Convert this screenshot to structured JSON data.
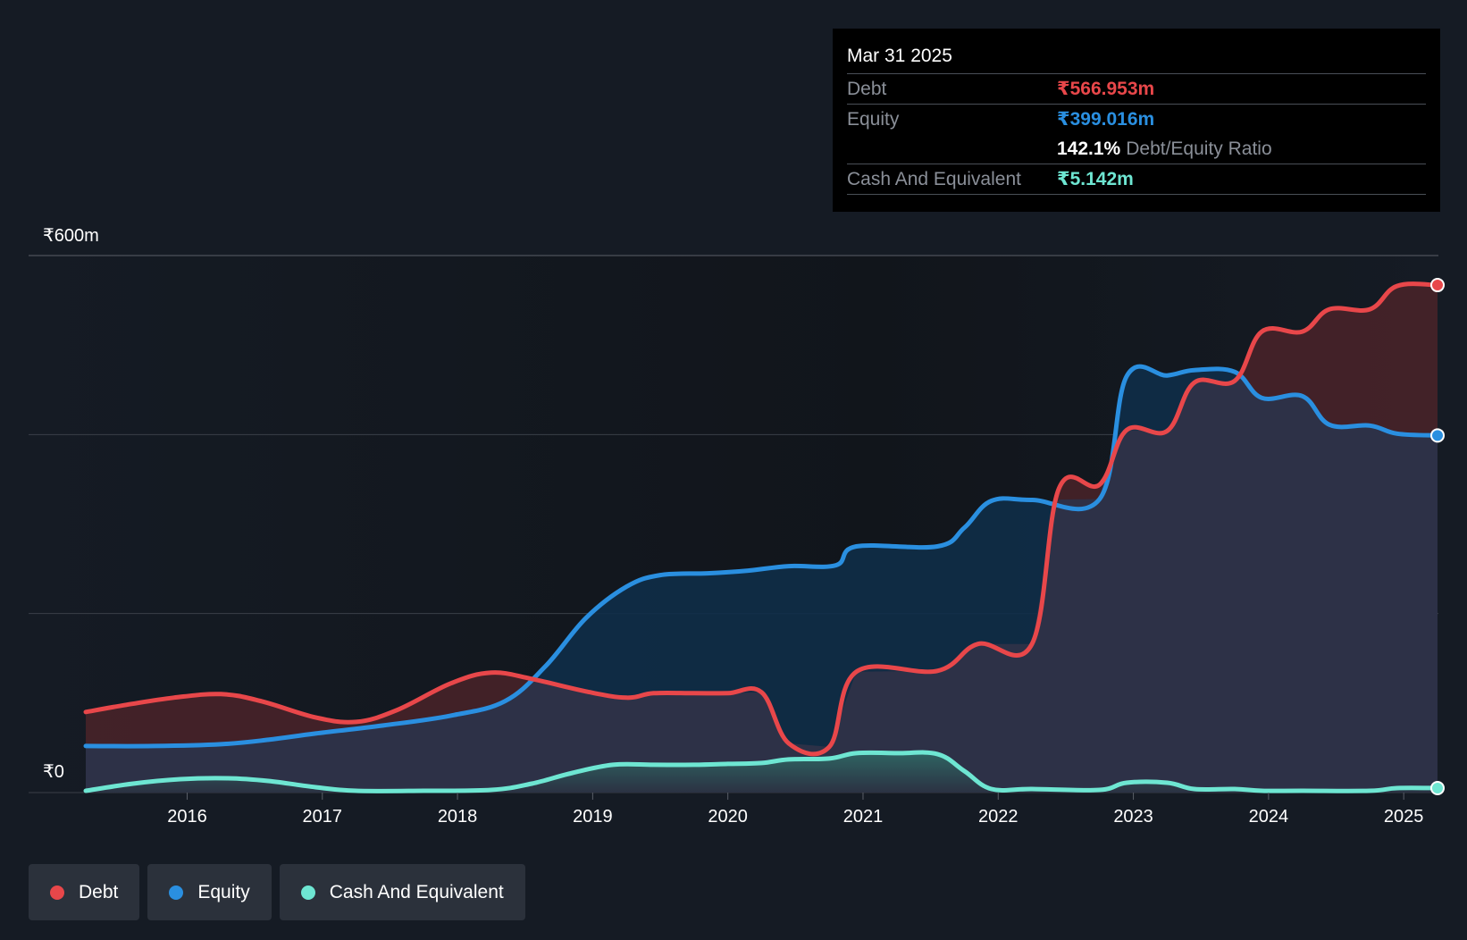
{
  "colors": {
    "debt": "#e8474a",
    "equity": "#2a8fe0",
    "cash": "#6ee6d2",
    "grid": "#3a3f48",
    "background": "#151b24"
  },
  "tooltip": {
    "date": "Mar 31 2025",
    "debt_label": "Debt",
    "debt_value": "₹566.953m",
    "equity_label": "Equity",
    "equity_value": "₹399.016m",
    "ratio_value": "142.1%",
    "ratio_label": "Debt/Equity Ratio",
    "cash_label": "Cash And Equivalent",
    "cash_value": "₹5.142m"
  },
  "legend": [
    {
      "key": "debt",
      "label": "Debt"
    },
    {
      "key": "equity",
      "label": "Equity"
    },
    {
      "key": "cash",
      "label": "Cash And Equivalent"
    }
  ],
  "chart_data": {
    "type": "area",
    "title": "",
    "xlabel": "",
    "ylabel": "",
    "y_axis_labels": [
      "₹600m",
      "₹0"
    ],
    "ylim": [
      0,
      600
    ],
    "xlim": [
      2015.25,
      2025.25
    ],
    "x_ticks": [
      "2016",
      "2017",
      "2018",
      "2019",
      "2020",
      "2021",
      "2022",
      "2023",
      "2024",
      "2025"
    ],
    "series": [
      {
        "name": "Debt",
        "key": "debt",
        "points": [
          [
            2015.25,
            90
          ],
          [
            2015.55,
            98
          ],
          [
            2015.9,
            106
          ],
          [
            2016.25,
            110
          ],
          [
            2016.55,
            102
          ],
          [
            2016.95,
            84
          ],
          [
            2017.25,
            79
          ],
          [
            2017.55,
            92
          ],
          [
            2017.95,
            122
          ],
          [
            2018.25,
            134
          ],
          [
            2018.55,
            127
          ],
          [
            2018.95,
            113
          ],
          [
            2019.25,
            106
          ],
          [
            2019.45,
            111
          ],
          [
            2019.75,
            111
          ],
          [
            2020.0,
            111
          ],
          [
            2020.25,
            112
          ],
          [
            2020.45,
            55
          ],
          [
            2020.75,
            51
          ],
          [
            2020.95,
            135
          ],
          [
            2021.55,
            136
          ],
          [
            2021.85,
            166
          ],
          [
            2022.25,
            166
          ],
          [
            2022.45,
            340
          ],
          [
            2022.75,
            344
          ],
          [
            2022.95,
            405
          ],
          [
            2023.25,
            404
          ],
          [
            2023.45,
            458
          ],
          [
            2023.75,
            460
          ],
          [
            2023.95,
            515
          ],
          [
            2024.25,
            515
          ],
          [
            2024.45,
            540
          ],
          [
            2024.75,
            540
          ],
          [
            2024.95,
            566
          ],
          [
            2025.25,
            567
          ]
        ]
      },
      {
        "name": "Equity",
        "key": "equity",
        "points": [
          [
            2015.25,
            52
          ],
          [
            2015.75,
            52
          ],
          [
            2016.25,
            54
          ],
          [
            2016.6,
            59
          ],
          [
            2016.95,
            66
          ],
          [
            2017.45,
            75
          ],
          [
            2017.95,
            86
          ],
          [
            2018.35,
            102
          ],
          [
            2018.65,
            141
          ],
          [
            2018.95,
            195
          ],
          [
            2019.25,
            230
          ],
          [
            2019.5,
            243
          ],
          [
            2019.85,
            245
          ],
          [
            2020.15,
            248
          ],
          [
            2020.45,
            253
          ],
          [
            2020.8,
            254
          ],
          [
            2020.95,
            275
          ],
          [
            2021.55,
            275
          ],
          [
            2021.75,
            296
          ],
          [
            2021.95,
            326
          ],
          [
            2022.25,
            327
          ],
          [
            2022.75,
            328
          ],
          [
            2022.95,
            465
          ],
          [
            2023.25,
            466
          ],
          [
            2023.45,
            472
          ],
          [
            2023.75,
            470
          ],
          [
            2023.95,
            441
          ],
          [
            2024.25,
            443
          ],
          [
            2024.45,
            411
          ],
          [
            2024.75,
            410
          ],
          [
            2024.95,
            401
          ],
          [
            2025.25,
            399
          ]
        ]
      },
      {
        "name": "Cash And Equivalent",
        "key": "cash",
        "points": [
          [
            2015.25,
            2
          ],
          [
            2015.6,
            10
          ],
          [
            2015.95,
            15
          ],
          [
            2016.3,
            16
          ],
          [
            2016.6,
            13
          ],
          [
            2016.95,
            6
          ],
          [
            2017.25,
            2
          ],
          [
            2017.75,
            2
          ],
          [
            2018.25,
            3
          ],
          [
            2018.55,
            10
          ],
          [
            2018.85,
            22
          ],
          [
            2019.15,
            31
          ],
          [
            2019.45,
            31
          ],
          [
            2019.75,
            31
          ],
          [
            2020.0,
            32
          ],
          [
            2020.25,
            33
          ],
          [
            2020.45,
            37
          ],
          [
            2020.75,
            38
          ],
          [
            2020.95,
            44
          ],
          [
            2021.25,
            44
          ],
          [
            2021.55,
            43
          ],
          [
            2021.75,
            24
          ],
          [
            2021.95,
            4
          ],
          [
            2022.25,
            4
          ],
          [
            2022.75,
            3
          ],
          [
            2022.95,
            11
          ],
          [
            2023.25,
            11
          ],
          [
            2023.45,
            4
          ],
          [
            2023.75,
            4
          ],
          [
            2023.95,
            2
          ],
          [
            2024.25,
            2
          ],
          [
            2024.75,
            2
          ],
          [
            2024.95,
            5
          ],
          [
            2025.25,
            5
          ]
        ]
      }
    ],
    "last_value_markers": true
  }
}
